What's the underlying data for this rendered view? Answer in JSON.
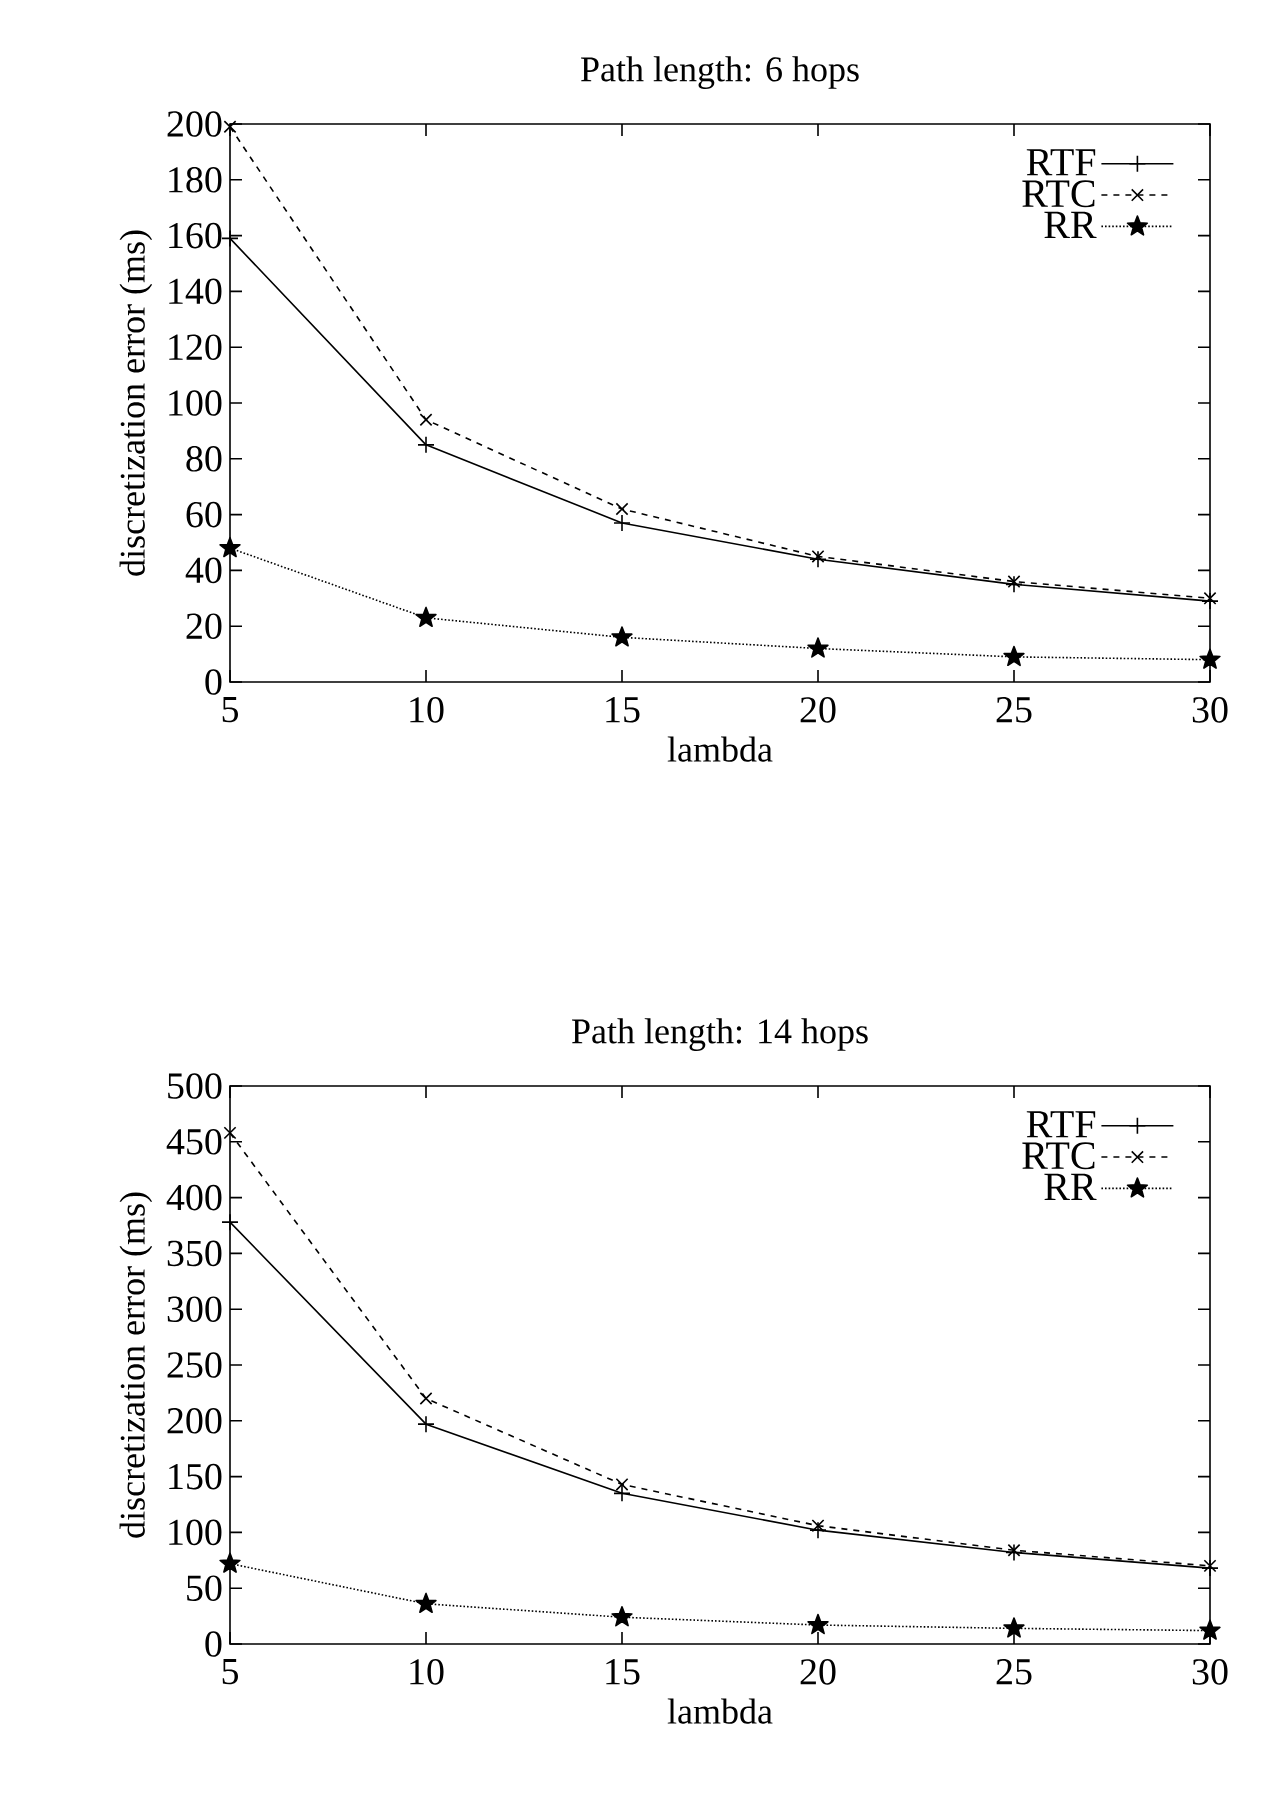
{
  "chart_data": [
    {
      "type": "line",
      "title": "Path length: 6 hops",
      "xlabel": "lambda",
      "ylabel": "discretization error (ms)",
      "x": [
        5,
        10,
        15,
        20,
        25,
        30
      ],
      "xlim": [
        5,
        30
      ],
      "xticks": [
        5,
        10,
        15,
        20,
        25,
        30
      ],
      "ylim": [
        0,
        200
      ],
      "yticks": [
        0,
        20,
        40,
        60,
        80,
        100,
        120,
        140,
        160,
        180,
        200
      ],
      "legend": "top right",
      "grid": false,
      "series": [
        {
          "name": "RTF",
          "color": "#000000",
          "marker": "plus",
          "line_style": "solid",
          "values": [
            159,
            85,
            57,
            44,
            35,
            29
          ]
        },
        {
          "name": "RTC",
          "color": "#000000",
          "marker": "cross",
          "line_style": "dashed",
          "values": [
            199,
            94,
            62,
            45,
            36,
            30
          ]
        },
        {
          "name": "RR",
          "color": "#000000",
          "marker": "star",
          "line_style": "dotted",
          "values": [
            48,
            23,
            16,
            12,
            9,
            8
          ]
        }
      ]
    },
    {
      "type": "line",
      "title": "Path length: 14 hops",
      "xlabel": "lambda",
      "ylabel": "discretization error (ms)",
      "x": [
        5,
        10,
        15,
        20,
        25,
        30
      ],
      "xlim": [
        5,
        30
      ],
      "xticks": [
        5,
        10,
        15,
        20,
        25,
        30
      ],
      "ylim": [
        0,
        500
      ],
      "yticks": [
        0,
        50,
        100,
        150,
        200,
        250,
        300,
        350,
        400,
        450,
        500
      ],
      "legend": "top right",
      "grid": false,
      "series": [
        {
          "name": "RTF",
          "color": "#000000",
          "marker": "plus",
          "line_style": "solid",
          "values": [
            378,
            197,
            135,
            102,
            82,
            68
          ]
        },
        {
          "name": "RTC",
          "color": "#000000",
          "marker": "cross",
          "line_style": "dashed",
          "values": [
            458,
            220,
            143,
            106,
            84,
            70
          ]
        },
        {
          "name": "RR",
          "color": "#000000",
          "marker": "star",
          "line_style": "dotted",
          "values": [
            72,
            36,
            24,
            17,
            14,
            12
          ]
        }
      ]
    }
  ]
}
